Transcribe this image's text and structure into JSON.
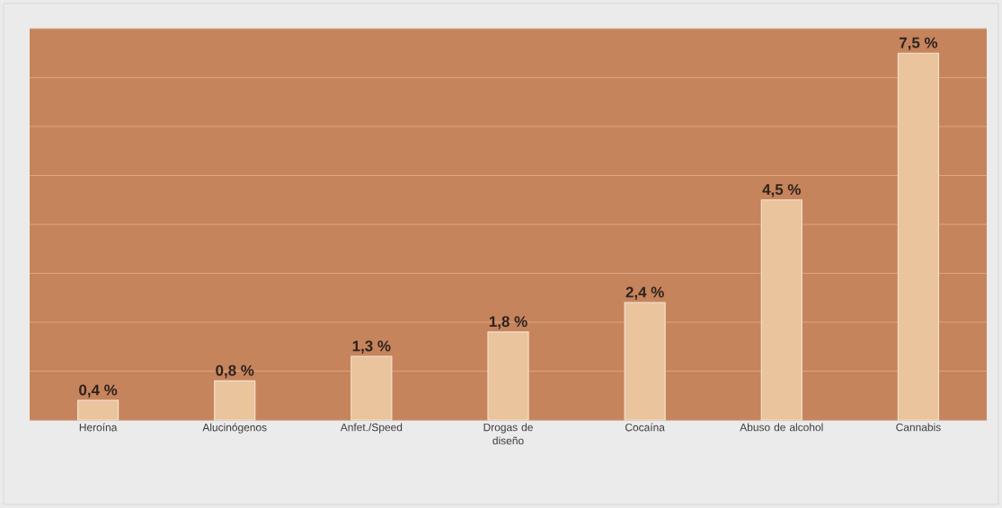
{
  "chart_data": {
    "type": "bar",
    "categories": [
      "Heroína",
      "Alucinógenos",
      "Anfet./Speed",
      "Drogas de diseño",
      "Cocaína",
      "Abuso de alcohol",
      "Cannabis"
    ],
    "values": [
      0.4,
      0.8,
      1.3,
      1.8,
      2.4,
      4.5,
      7.5
    ],
    "value_labels": [
      "0,4 %",
      "0,8 %",
      "1,3 %",
      "1,8 %",
      "2,4 %",
      "4,5 %",
      "7,5 %"
    ],
    "color": "#e9c49c",
    "ylim": [
      0,
      8
    ],
    "yticks": [
      {
        "value": 0,
        "label": null
      },
      {
        "value": 1,
        "label": null
      },
      {
        "value": 2,
        "label": null
      },
      {
        "value": 3,
        "label": null
      },
      {
        "value": 4,
        "label": null
      },
      {
        "value": 5,
        "label": null
      },
      {
        "value": 6,
        "label": null
      },
      {
        "value": 7,
        "label": null
      },
      {
        "value": 8,
        "label": null
      }
    ],
    "tick_labels": "x",
    "grid": "y"
  }
}
